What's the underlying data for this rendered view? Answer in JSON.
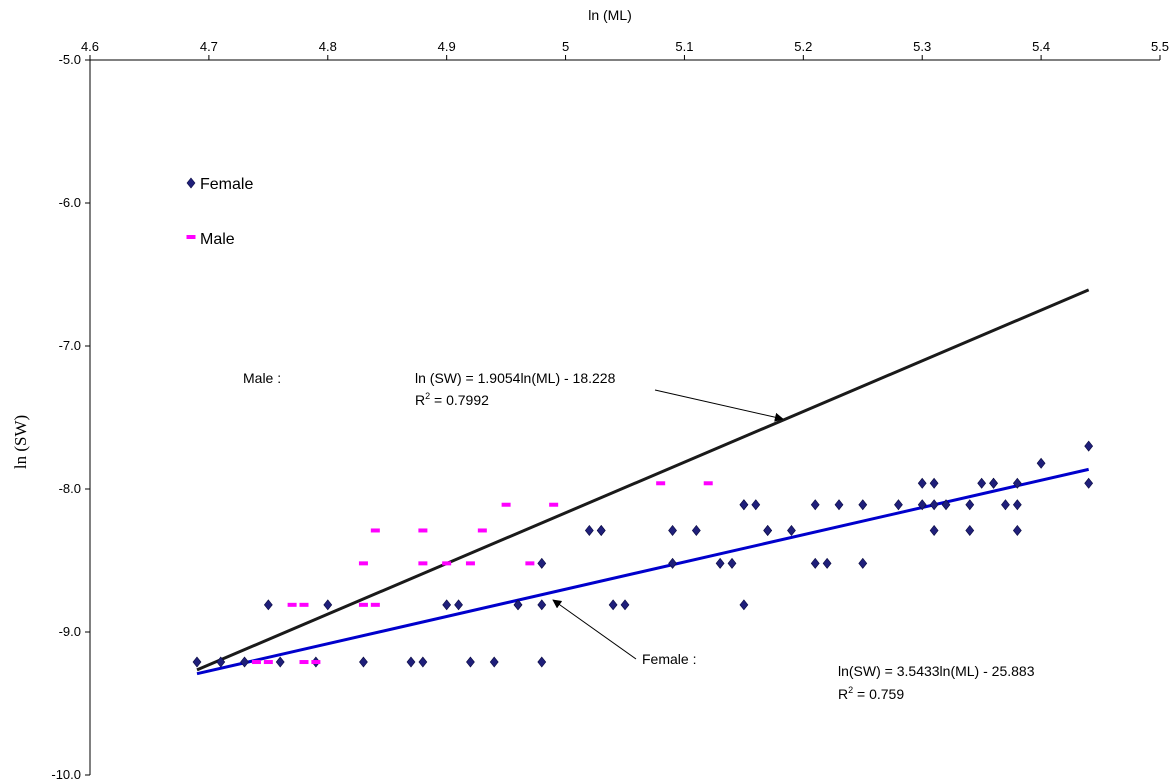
{
  "chart_data": {
    "type": "scatter",
    "xlabel": "ln (ML)",
    "ylabel": "ln (SW)",
    "xlim": [
      4.6,
      5.5
    ],
    "ylim": [
      -10.0,
      -5.0
    ],
    "x_ticks": [
      "4.6",
      "4.7",
      "4.8",
      "4.9",
      "5",
      "5.1",
      "5.2",
      "5.3",
      "5.4",
      "5.5"
    ],
    "y_ticks": [
      "-5.0",
      "-6.0",
      "-7.0",
      "-8.0",
      "-9.0",
      "-10.0"
    ],
    "x_axis_position": "top",
    "grid": false,
    "legend_position": "top-left",
    "series": [
      {
        "name": "Female",
        "marker": "diamond",
        "color": "#1f1f7a",
        "points": [
          [
            4.69,
            -9.21
          ],
          [
            4.71,
            -9.21
          ],
          [
            4.73,
            -9.21
          ],
          [
            4.75,
            -8.81
          ],
          [
            4.76,
            -9.21
          ],
          [
            4.79,
            -9.21
          ],
          [
            4.8,
            -8.81
          ],
          [
            4.83,
            -9.21
          ],
          [
            4.87,
            -9.21
          ],
          [
            4.88,
            -9.21
          ],
          [
            4.9,
            -8.81
          ],
          [
            4.91,
            -8.81
          ],
          [
            4.92,
            -9.21
          ],
          [
            4.94,
            -9.21
          ],
          [
            4.96,
            -8.81
          ],
          [
            4.96,
            -8.81
          ],
          [
            4.98,
            -8.81
          ],
          [
            4.98,
            -9.21
          ],
          [
            4.98,
            -8.52
          ],
          [
            5.02,
            -8.29
          ],
          [
            5.03,
            -8.29
          ],
          [
            5.03,
            -8.29
          ],
          [
            5.04,
            -8.81
          ],
          [
            5.05,
            -8.81
          ],
          [
            5.09,
            -8.52
          ],
          [
            5.09,
            -8.29
          ],
          [
            5.11,
            -8.29
          ],
          [
            5.13,
            -8.52
          ],
          [
            5.14,
            -8.52
          ],
          [
            5.15,
            -8.11
          ],
          [
            5.15,
            -8.11
          ],
          [
            5.15,
            -8.81
          ],
          [
            5.16,
            -8.11
          ],
          [
            5.17,
            -8.29
          ],
          [
            5.17,
            -8.29
          ],
          [
            5.19,
            -8.29
          ],
          [
            5.21,
            -8.52
          ],
          [
            5.21,
            -8.11
          ],
          [
            5.22,
            -8.52
          ],
          [
            5.23,
            -8.11
          ],
          [
            5.25,
            -8.11
          ],
          [
            5.25,
            -8.52
          ],
          [
            5.28,
            -8.11
          ],
          [
            5.3,
            -7.96
          ],
          [
            5.3,
            -8.11
          ],
          [
            5.31,
            -8.29
          ],
          [
            5.31,
            -8.11
          ],
          [
            5.31,
            -7.96
          ],
          [
            5.32,
            -8.11
          ],
          [
            5.34,
            -8.11
          ],
          [
            5.34,
            -8.29
          ],
          [
            5.35,
            -7.96
          ],
          [
            5.36,
            -7.96
          ],
          [
            5.36,
            -7.96
          ],
          [
            5.37,
            -8.11
          ],
          [
            5.38,
            -7.96
          ],
          [
            5.38,
            -8.11
          ],
          [
            5.38,
            -8.29
          ],
          [
            5.4,
            -7.82
          ],
          [
            5.44,
            -7.96
          ],
          [
            5.44,
            -7.7
          ]
        ]
      },
      {
        "name": "Male",
        "marker": "dash",
        "color": "#ff00ff",
        "points": [
          [
            4.74,
            -9.21
          ],
          [
            4.75,
            -9.21
          ],
          [
            4.77,
            -8.81
          ],
          [
            4.78,
            -8.81
          ],
          [
            4.78,
            -9.21
          ],
          [
            4.79,
            -9.21
          ],
          [
            4.83,
            -8.52
          ],
          [
            4.83,
            -8.81
          ],
          [
            4.84,
            -8.81
          ],
          [
            4.84,
            -8.29
          ],
          [
            4.88,
            -8.52
          ],
          [
            4.88,
            -8.29
          ],
          [
            4.9,
            -8.52
          ],
          [
            4.92,
            -8.52
          ],
          [
            4.93,
            -8.29
          ],
          [
            4.95,
            -8.11
          ],
          [
            4.97,
            -8.52
          ],
          [
            4.99,
            -8.11
          ],
          [
            5.08,
            -7.96
          ],
          [
            5.12,
            -7.96
          ]
        ]
      }
    ],
    "trendlines": [
      {
        "name": "Male",
        "color": "#0000cc",
        "slope": 1.9054,
        "intercept": -18.228,
        "x_range": [
          4.69,
          5.44
        ]
      },
      {
        "name": "Female",
        "color": "#1a1a1a",
        "slope": 3.5433,
        "intercept": -25.883,
        "x_range": [
          4.69,
          5.44
        ]
      }
    ],
    "legend": {
      "female": "Female",
      "male": "Male"
    },
    "annotations": {
      "male_label": "Male :",
      "male_eq": "ln (SW) = 1.9054ln(ML) - 18.228",
      "male_r2_prefix": "R",
      "male_r2_sup": "2",
      "male_r2_value": " = 0.7992",
      "female_label": "Female :",
      "female_eq": "ln(SW) = 3.5433ln(ML) - 25.883",
      "female_r2_prefix": "R",
      "female_r2_sup": "2",
      "female_r2_value": " = 0.759"
    }
  }
}
